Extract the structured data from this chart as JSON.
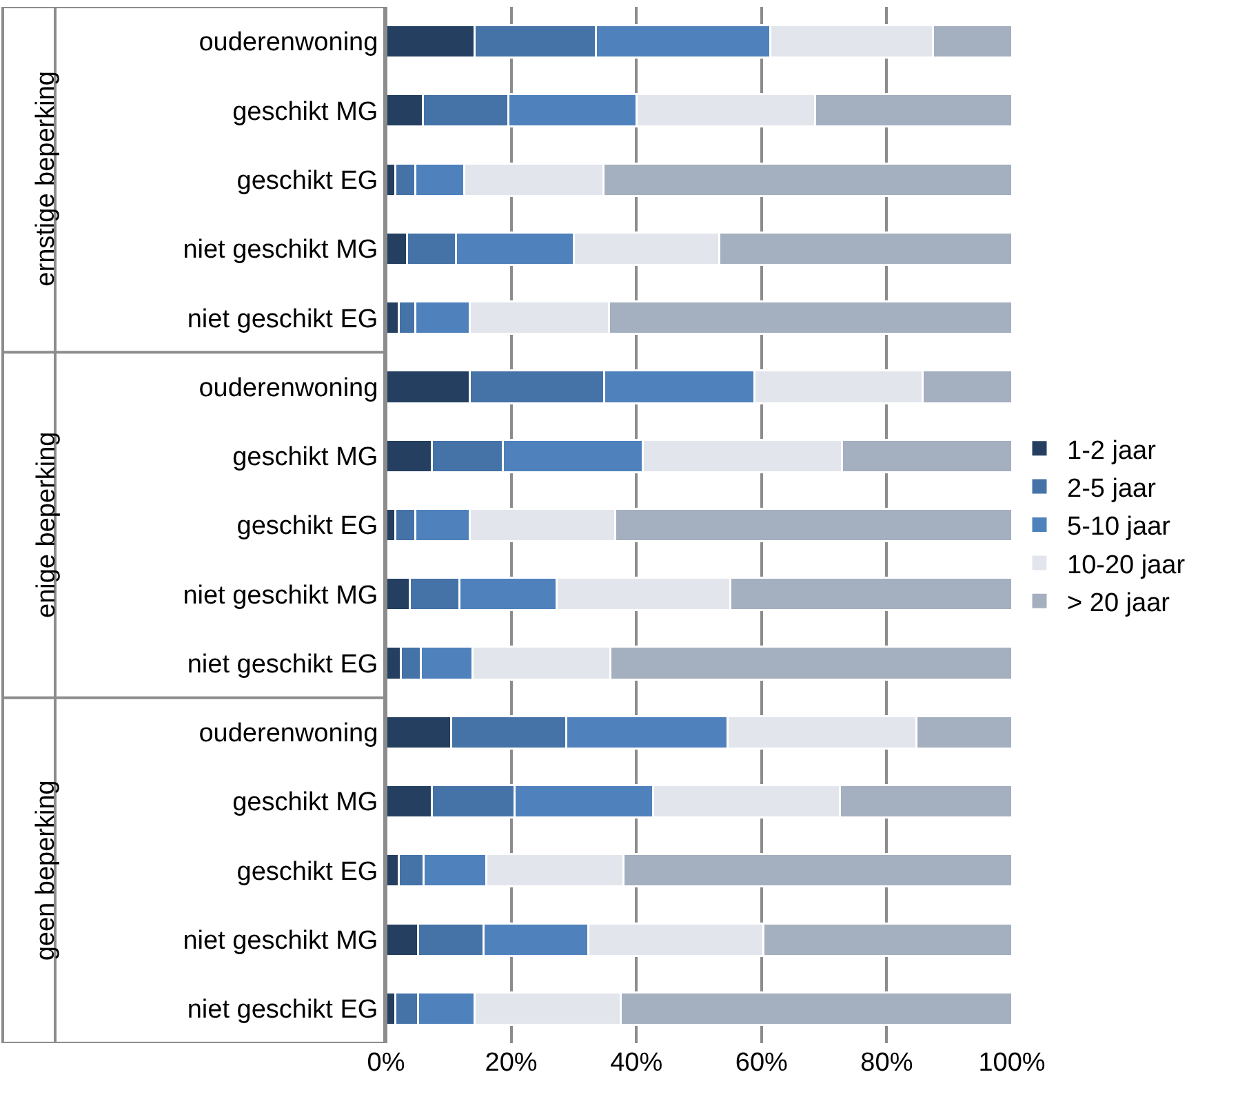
{
  "chart_data": {
    "type": "bar",
    "orientation": "horizontal",
    "stacked": true,
    "categories": [
      "ouderenwoning",
      "geschikt MG",
      "geschikt EG",
      "niet geschikt MG",
      "niet geschikt EG",
      "ouderenwoning",
      "geschikt MG",
      "geschikt EG",
      "niet geschikt MG",
      "niet geschikt EG",
      "ouderenwoning",
      "geschikt MG",
      "geschikt EG",
      "niet geschikt MG",
      "niet geschikt EG"
    ],
    "series": [
      {
        "name": "1-2 jaar",
        "color": "#243f60",
        "values": [
          14.2,
          5.9,
          1.5,
          3.4,
          2.0,
          13.4,
          7.3,
          1.5,
          3.8,
          2.4,
          10.4,
          7.3,
          2.0,
          5.1,
          1.5
        ]
      },
      {
        "name": "2-5 jaar",
        "color": "#4572a7",
        "values": [
          19.3,
          13.6,
          3.2,
          7.8,
          2.7,
          21.5,
          11.4,
          3.2,
          7.9,
          3.2,
          18.4,
          13.2,
          4.0,
          10.5,
          3.6
        ]
      },
      {
        "name": "5-10 jaar",
        "color": "#4f81bd",
        "values": [
          27.9,
          20.5,
          7.8,
          18.8,
          8.7,
          24.0,
          22.3,
          8.7,
          15.6,
          8.2,
          25.8,
          22.2,
          10.0,
          16.7,
          9.1
        ]
      },
      {
        "name": "10-20 jaar",
        "color": "#e2e6ec",
        "values": [
          26.0,
          28.6,
          22.3,
          23.2,
          22.2,
          26.8,
          31.9,
          23.2,
          27.7,
          22.1,
          30.2,
          29.8,
          21.9,
          28.0,
          23.3
        ]
      },
      {
        "name": "> 20 jaar",
        "color": "#a4afc0",
        "values": [
          12.6,
          31.4,
          65.2,
          46.8,
          64.4,
          14.3,
          27.1,
          63.4,
          45.0,
          64.1,
          15.2,
          27.5,
          62.1,
          39.7,
          62.5
        ]
      }
    ],
    "annotations": [
      "ernstige beperking",
      "enige beperking",
      "geen beperking"
    ],
    "xlim": [
      0,
      100
    ],
    "xticks": [
      {
        "value": 0,
        "label": "0%"
      },
      {
        "value": 20,
        "label": "20%"
      },
      {
        "value": 40,
        "label": "40%"
      },
      {
        "value": 60,
        "label": "60%"
      },
      {
        "value": 80,
        "label": "80%"
      },
      {
        "value": 100,
        "label": "100%"
      }
    ],
    "grid": "x",
    "legend": "right"
  }
}
